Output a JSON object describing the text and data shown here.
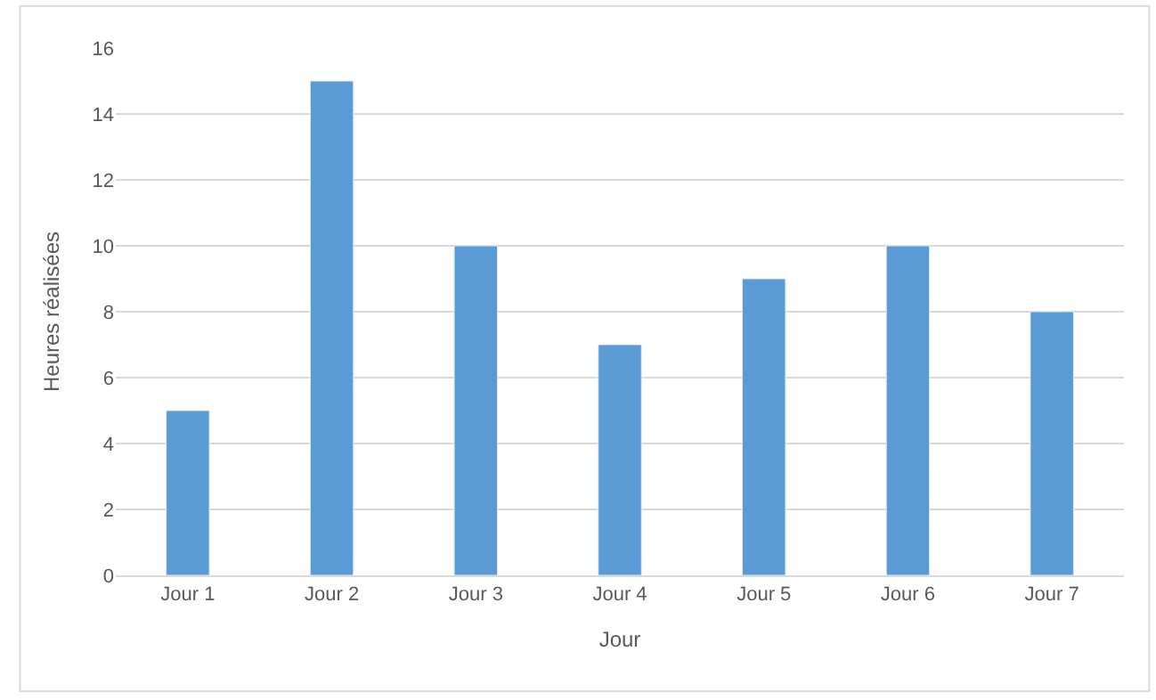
{
  "chart_data": {
    "type": "bar",
    "xlabel": "Jour",
    "ylabel": "Heures réalisées",
    "categories": [
      "Jour 1",
      "Jour 2",
      "Jour 3",
      "Jour 4",
      "Jour 5",
      "Jour 6",
      "Jour 7"
    ],
    "values": [
      5,
      15,
      10,
      7,
      9,
      10,
      8
    ],
    "color": "#5b9bd5",
    "ylim": [
      0,
      16
    ],
    "yticks": [
      0,
      2,
      4,
      6,
      8,
      10,
      12,
      14,
      16
    ],
    "grid": "y",
    "legend": false
  }
}
